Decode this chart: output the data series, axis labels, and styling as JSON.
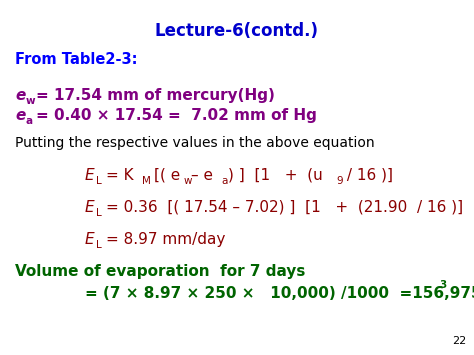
{
  "bg_color": "#FFFFFF",
  "title": "Lecture-6(contd.)",
  "title_color": "#0000CC",
  "page_num": "22",
  "fig_w": 4.74,
  "fig_h": 3.55,
  "dpi": 100
}
